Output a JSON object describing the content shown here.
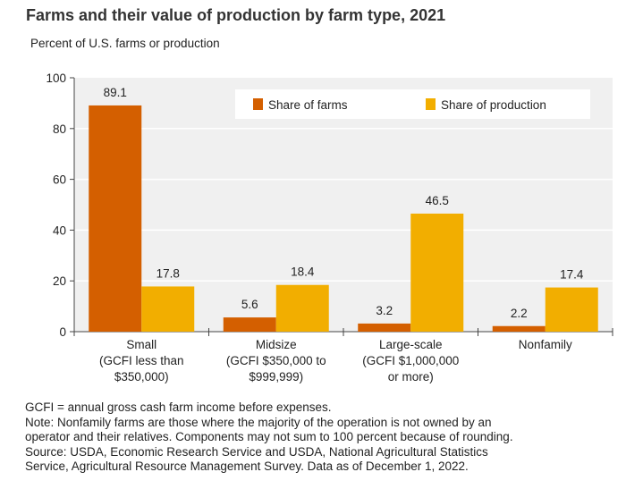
{
  "chart_data": {
    "type": "bar",
    "title": "Farms and their value of production by farm type, 2021",
    "ylabel": "Percent of U.S. farms or production",
    "xlabel": "",
    "ylim": [
      0,
      100
    ],
    "yticks": [
      0,
      20,
      40,
      60,
      80,
      100
    ],
    "grid": true,
    "legend_placement": "top-right",
    "categories": [
      [
        "Small",
        "(GCFI less than",
        "$350,000)"
      ],
      [
        "Midsize",
        "(GCFI $350,000 to",
        "$999,999)"
      ],
      [
        "Large-scale",
        "(GCFI $1,000,000",
        "or more)"
      ],
      [
        "Nonfamily"
      ]
    ],
    "series": [
      {
        "name": "Share of farms",
        "color": "#d45f00",
        "values": [
          89.1,
          5.6,
          3.2,
          2.2
        ],
        "labels": [
          "89.1",
          "5.6",
          "3.2",
          "2.2"
        ]
      },
      {
        "name": "Share of production",
        "color": "#f2ae00",
        "values": [
          17.8,
          18.4,
          46.5,
          17.4
        ],
        "labels": [
          "17.8",
          "18.4",
          "46.5",
          "17.4"
        ]
      }
    ]
  },
  "notes": [
    "GCFI = annual gross cash farm income before expenses.",
    "Note: Nonfamily farms are those where the majority of the operation is not owned by an",
    "operator and their relatives. Components may not sum to 100 percent because of rounding.",
    "Source: USDA, Economic Research Service and USDA, National Agricultural Statistics",
    "Service, Agricultural Resource Management Survey. Data as of December 1, 2022."
  ]
}
